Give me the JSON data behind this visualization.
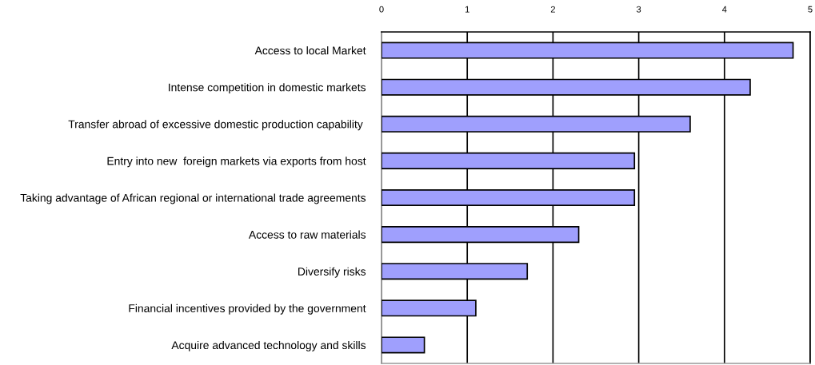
{
  "chart_data": {
    "type": "bar",
    "orientation": "horizontal",
    "categories": [
      "Access to local Market",
      "Intense competition in domestic markets",
      "Transfer abroad of excessive domestic production capability ",
      "Entry into new  foreign markets via exports from host",
      "Taking advantage of African regional or international trade agreements",
      "Access to raw materials",
      "Diversify risks",
      "Financial incentives provided by the government",
      "Acquire advanced technology and skills"
    ],
    "values": [
      4.8,
      4.3,
      3.6,
      2.95,
      2.95,
      2.3,
      1.7,
      1.1,
      0.5
    ],
    "color": "#9f9ffd",
    "xlim": [
      0,
      5
    ],
    "xticks": [
      0,
      1,
      2,
      3,
      4,
      5
    ],
    "grid": "x"
  }
}
